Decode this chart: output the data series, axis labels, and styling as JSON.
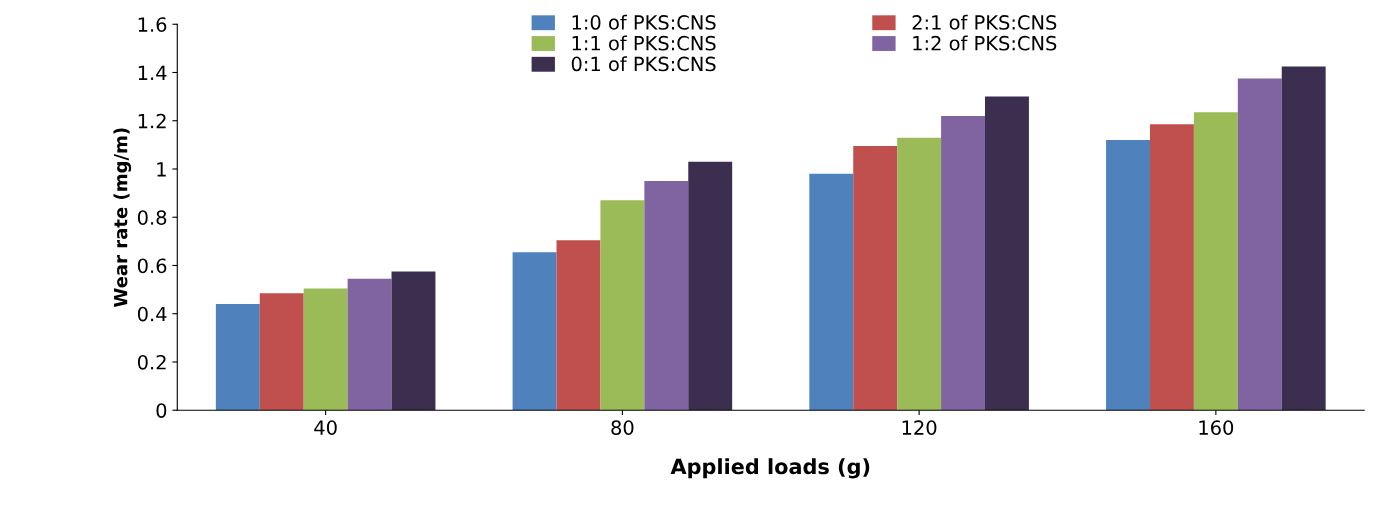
{
  "chart_data": {
    "type": "bar",
    "xlabel": "Applied loads (g)",
    "ylabel": "Wear rate (mg/m)",
    "categories": [
      "40",
      "80",
      "120",
      "160"
    ],
    "series": [
      {
        "name": "1:0 of PKS:CNS",
        "color": "#4f81bd",
        "values": [
          0.44,
          0.655,
          0.98,
          1.12
        ]
      },
      {
        "name": "2:1 of PKS:CNS",
        "color": "#c0504d",
        "values": [
          0.485,
          0.705,
          1.095,
          1.185
        ]
      },
      {
        "name": "1:1 of PKS:CNS",
        "color": "#9bbb59",
        "values": [
          0.505,
          0.87,
          1.13,
          1.235
        ]
      },
      {
        "name": "1:2 of PKS:CNS",
        "color": "#8064a2",
        "values": [
          0.545,
          0.95,
          1.22,
          1.375
        ]
      },
      {
        "name": "0:1 of PKS:CNS",
        "color": "#3b2e4f",
        "values": [
          0.575,
          1.03,
          1.3,
          1.425
        ]
      }
    ],
    "ylim": [
      0,
      1.6
    ],
    "yticks": [
      0,
      0.2,
      0.4,
      0.6,
      0.8,
      1,
      1.2,
      1.4,
      1.6
    ],
    "grid": false,
    "legend": "top"
  }
}
